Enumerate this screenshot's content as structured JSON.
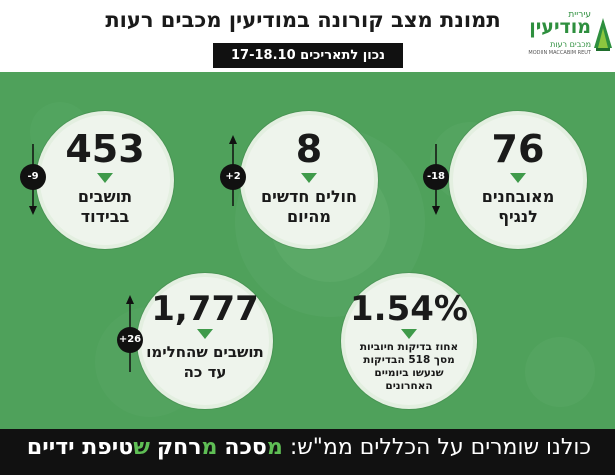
{
  "header": {
    "title": "תמונת מצב קורונה במודיעין מכבים רעות",
    "date_badge": "נכון לתאריכים 17-18.10"
  },
  "logo": {
    "line1": "עיריית",
    "line2": "מודיעין",
    "line3": "מכבים רעות",
    "line4": "MODIIN MACCABIM REUT"
  },
  "stats": [
    {
      "value": "76",
      "label_line1": "מאובחנים",
      "label_line2": "לנגיף",
      "delta": "-18"
    },
    {
      "value": "8",
      "label_line1": "חולים חדשים",
      "label_line2": "מהיום",
      "delta": "+2"
    },
    {
      "value": "453",
      "label_line1": "תושבים",
      "label_line2": "בבידוד",
      "delta": "-9"
    },
    {
      "value": "1.54%",
      "label_line1": "אחוז בדיקות חיוביות",
      "label_line2": "מסך 518 הבדיקות",
      "label_line3": "שנעשו ביומיים",
      "label_line4": "האחרונים"
    },
    {
      "value": "1,777",
      "label_line1": "תושבים שהחלימו",
      "label_line2": "עד כה",
      "delta": "+26"
    }
  ],
  "footer": {
    "prefix": "כולנו שומרים על הכללים ממ\"ש:",
    "m1_letter": "מ",
    "m1_rest": "סכה",
    "m2_letter": "מ",
    "m2_rest": "רחק",
    "s_letter": "ש",
    "s_rest": "טיפת ידיים"
  },
  "colors": {
    "accent_green": "#4fa15b",
    "badge_black": "#111111",
    "logo_green": "#2e8f3e"
  }
}
